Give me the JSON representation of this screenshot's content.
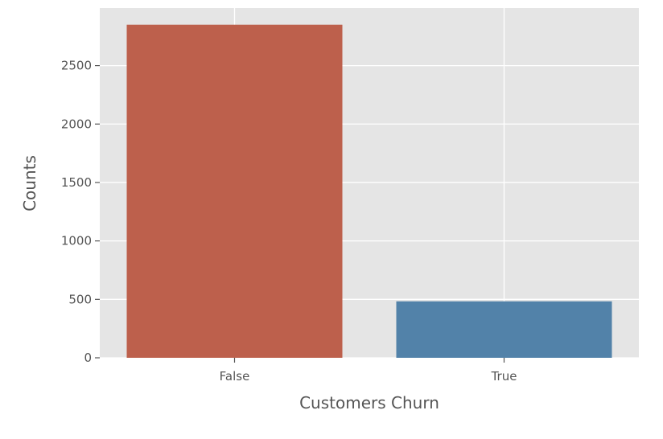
{
  "chart_data": {
    "type": "bar",
    "categories": [
      "False",
      "True"
    ],
    "values": [
      2850,
      483
    ],
    "xlabel": "Customers Churn",
    "ylabel": "Counts",
    "ylim": [
      0,
      2992.5
    ],
    "yticks": [
      0,
      500,
      1000,
      1500,
      2000,
      2500
    ],
    "grid": true,
    "legend": "none",
    "colors": {
      "background": "#e5e5e5",
      "grid": "#ffffff",
      "bars": [
        "#bd604c",
        "#5282a9"
      ],
      "text": "#555555"
    }
  }
}
